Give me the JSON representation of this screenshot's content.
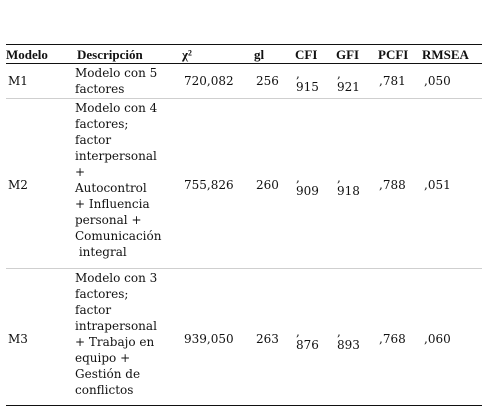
{
  "table": {
    "headers": {
      "modelo": "Modelo",
      "descripcion": "Descripción",
      "chi2": "χ²",
      "gl": "gl",
      "cfi": "CFI",
      "gfi": "GFI",
      "pcfi": "PCFI",
      "rmsea": "RMSEA"
    },
    "rows": [
      {
        "modelo": "M1",
        "descripcion_lines": [
          "Modelo con 5",
          "factores"
        ],
        "chi2": "720,082",
        "gl": "256",
        "cfi_a": ",",
        "cfi_b": "915",
        "gfi_a": ",",
        "gfi_b": "921",
        "pcfi": ",781",
        "rmsea": ",050"
      },
      {
        "modelo": "M2",
        "descripcion_lines": [
          "Modelo con 4",
          "factores;",
          "factor",
          "interpersonal",
          "+",
          "Autocontrol",
          "+ Influencia",
          "personal +",
          "Comunicación",
          " integral"
        ],
        "chi2": "755,826",
        "gl": "260",
        "cfi_a": ",",
        "cfi_b": "909",
        "gfi_a": ",",
        "gfi_b": "918",
        "pcfi": ",788",
        "rmsea": ",051"
      },
      {
        "modelo": "M3",
        "descripcion_lines": [
          "Modelo con 3",
          "factores;",
          "factor",
          "intrapersonal",
          "+ Trabajo en",
          "equipo +",
          "Gestión de",
          "conflictos"
        ],
        "chi2": "939,050",
        "gl": "263",
        "cfi_a": ",",
        "cfi_b": "876",
        "gfi_a": ",",
        "gfi_b": "893",
        "pcfi": ",768",
        "rmsea": ",060"
      }
    ]
  }
}
